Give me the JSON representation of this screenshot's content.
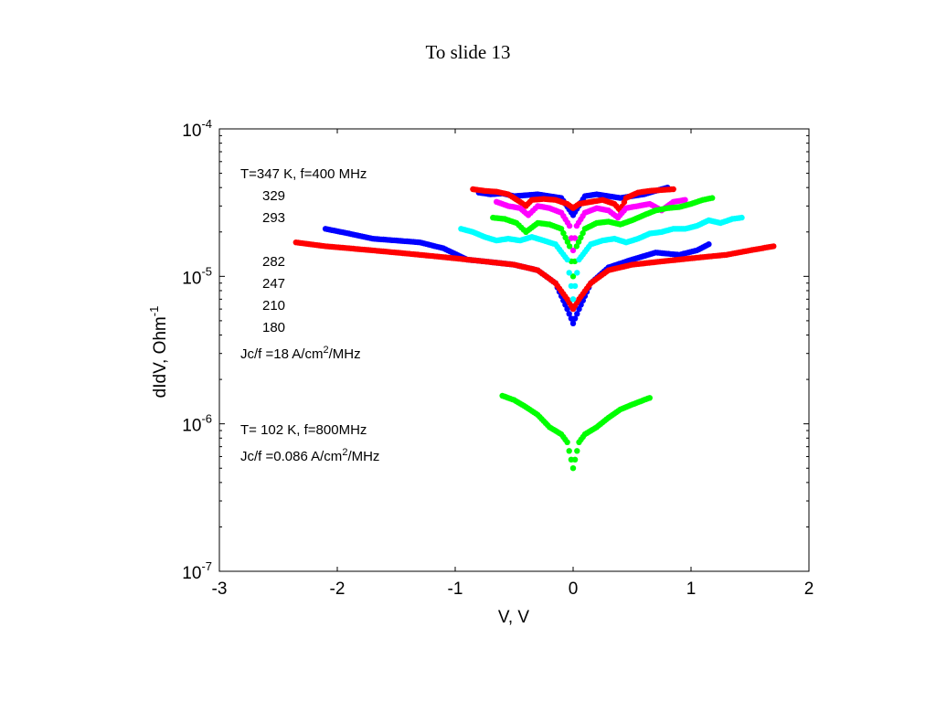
{
  "slide_title": "To slide 13",
  "chart_data": {
    "type": "scatter",
    "title": "",
    "xlabel": "V, V",
    "ylabel": "dIdV, Ohm",
    "ylabel_superscript": "-1",
    "xlim": [
      -3,
      2
    ],
    "ylim": [
      1e-07,
      0.0001
    ],
    "yscale": "log",
    "grid": false,
    "x_ticks": [
      -3,
      -2,
      -1,
      0,
      1,
      2
    ],
    "x_tick_labels": [
      "-3",
      "-2",
      "-1",
      "0",
      "1",
      "2"
    ],
    "y_ticks": [
      1e-07,
      1e-06,
      1e-05,
      0.0001
    ],
    "y_tick_labels": [
      {
        "base": "10",
        "exp": "-7"
      },
      {
        "base": "10",
        "exp": "-6"
      },
      {
        "base": "10",
        "exp": "-5"
      },
      {
        "base": "10",
        "exp": "-4"
      }
    ],
    "annotations": {
      "group1_header": "T=347 K, f=400 MHz",
      "temperatures": [
        "329",
        "293",
        "282",
        "247",
        "210",
        "180"
      ],
      "group1_jc": {
        "text": "Jc/f =18 A/cm",
        "sup": "2",
        "tail": "/MHz"
      },
      "group2_header": "T= 102 K, f=800MHz",
      "group2_jc": {
        "text": "Jc/f =0.086 A/cm",
        "sup": "2",
        "tail": "/MHz"
      }
    },
    "series": [
      {
        "color": "#0000ff",
        "shape": "w",
        "points": [
          [
            -0.8,
            3.7e-05
          ],
          [
            -0.7,
            3.6e-05
          ],
          [
            -0.6,
            3.65e-05
          ],
          [
            -0.5,
            3.5e-05
          ],
          [
            -0.4,
            3.55e-05
          ],
          [
            -0.3,
            3.6e-05
          ],
          [
            -0.2,
            3.5e-05
          ],
          [
            -0.1,
            3.4e-05
          ],
          [
            0.0,
            2.6e-05
          ],
          [
            0.1,
            3.5e-05
          ],
          [
            0.2,
            3.6e-05
          ],
          [
            0.3,
            3.5e-05
          ],
          [
            0.4,
            3.4e-05
          ],
          [
            0.5,
            3.5e-05
          ],
          [
            0.6,
            3.6e-05
          ],
          [
            0.7,
            3.8e-05
          ],
          [
            0.8,
            4e-05
          ]
        ],
        "points_low": [
          [
            -2.1,
            2.1e-05
          ],
          [
            -1.9,
            1.95e-05
          ],
          [
            -1.7,
            1.8e-05
          ],
          [
            -1.5,
            1.75e-05
          ],
          [
            -1.3,
            1.7e-05
          ],
          [
            -1.1,
            1.55e-05
          ],
          [
            -0.9,
            1.3e-05
          ],
          [
            -0.7,
            1.25e-05
          ],
          [
            -0.5,
            1.2e-05
          ],
          [
            -0.3,
            1.1e-05
          ],
          [
            -0.15,
            9e-06
          ],
          [
            -0.05,
            6e-06
          ],
          [
            0.0,
            4.8e-06
          ],
          [
            0.05,
            6e-06
          ],
          [
            0.15,
            9e-06
          ],
          [
            0.3,
            1.15e-05
          ],
          [
            0.5,
            1.3e-05
          ],
          [
            0.7,
            1.45e-05
          ],
          [
            0.9,
            1.4e-05
          ],
          [
            1.05,
            1.5e-05
          ],
          [
            1.15,
            1.65e-05
          ]
        ]
      },
      {
        "color": "#ff0000",
        "shape": "w",
        "points": [
          [
            -0.85,
            3.9e-05
          ],
          [
            -0.75,
            3.8e-05
          ],
          [
            -0.65,
            3.75e-05
          ],
          [
            -0.55,
            3.6e-05
          ],
          [
            -0.45,
            3.2e-05
          ],
          [
            -0.4,
            3e-05
          ],
          [
            -0.35,
            3.3e-05
          ],
          [
            -0.25,
            3.35e-05
          ],
          [
            -0.15,
            3.3e-05
          ],
          [
            -0.05,
            3.1e-05
          ],
          [
            0.0,
            2.9e-05
          ],
          [
            0.05,
            3.1e-05
          ],
          [
            0.15,
            3.2e-05
          ],
          [
            0.25,
            3.3e-05
          ],
          [
            0.35,
            3.1e-05
          ],
          [
            0.4,
            2.8e-05
          ],
          [
            0.45,
            3.4e-05
          ],
          [
            0.55,
            3.7e-05
          ],
          [
            0.65,
            3.8e-05
          ],
          [
            0.75,
            3.85e-05
          ],
          [
            0.85,
            3.9e-05
          ]
        ],
        "points_low": [
          [
            -2.35,
            1.7e-05
          ],
          [
            -2.1,
            1.6e-05
          ],
          [
            -1.9,
            1.55e-05
          ],
          [
            -1.7,
            1.5e-05
          ],
          [
            -1.5,
            1.45e-05
          ],
          [
            -1.3,
            1.4e-05
          ],
          [
            -1.1,
            1.35e-05
          ],
          [
            -0.9,
            1.3e-05
          ],
          [
            -0.7,
            1.25e-05
          ],
          [
            -0.5,
            1.2e-05
          ],
          [
            -0.3,
            1.1e-05
          ],
          [
            -0.15,
            9e-06
          ],
          [
            -0.05,
            7e-06
          ],
          [
            0.0,
            6e-06
          ],
          [
            0.05,
            7e-06
          ],
          [
            0.15,
            9e-06
          ],
          [
            0.3,
            1.1e-05
          ],
          [
            0.5,
            1.2e-05
          ],
          [
            0.7,
            1.25e-05
          ],
          [
            0.9,
            1.3e-05
          ],
          [
            1.1,
            1.35e-05
          ],
          [
            1.3,
            1.4e-05
          ],
          [
            1.5,
            1.5e-05
          ],
          [
            1.7,
            1.6e-05
          ]
        ]
      },
      {
        "color": "#ff00ff",
        "shape": "w",
        "points": [
          [
            -0.65,
            3.2e-05
          ],
          [
            -0.55,
            3e-05
          ],
          [
            -0.45,
            2.9e-05
          ],
          [
            -0.38,
            2.6e-05
          ],
          [
            -0.3,
            3e-05
          ],
          [
            -0.2,
            2.9e-05
          ],
          [
            -0.1,
            2.7e-05
          ],
          [
            -0.03,
            2.2e-05
          ],
          [
            0.0,
            1.5e-05
          ],
          [
            0.03,
            2.2e-05
          ],
          [
            0.1,
            2.7e-05
          ],
          [
            0.2,
            2.9e-05
          ],
          [
            0.3,
            2.8e-05
          ],
          [
            0.38,
            2.5e-05
          ],
          [
            0.45,
            2.9e-05
          ],
          [
            0.55,
            3e-05
          ],
          [
            0.65,
            3.1e-05
          ],
          [
            0.75,
            2.8e-05
          ],
          [
            0.85,
            3.2e-05
          ],
          [
            0.95,
            3.3e-05
          ]
        ]
      },
      {
        "color": "#00ff00",
        "shape": "w",
        "points": [
          [
            -0.68,
            2.5e-05
          ],
          [
            -0.58,
            2.45e-05
          ],
          [
            -0.48,
            2.3e-05
          ],
          [
            -0.4,
            2e-05
          ],
          [
            -0.3,
            2.3e-05
          ],
          [
            -0.2,
            2.25e-05
          ],
          [
            -0.1,
            2.1e-05
          ],
          [
            -0.03,
            1.6e-05
          ],
          [
            0.0,
            1e-05
          ],
          [
            0.03,
            1.6e-05
          ],
          [
            0.1,
            2.1e-05
          ],
          [
            0.2,
            2.3e-05
          ],
          [
            0.3,
            2.35e-05
          ],
          [
            0.4,
            2.25e-05
          ],
          [
            0.5,
            2.4e-05
          ],
          [
            0.6,
            2.6e-05
          ],
          [
            0.7,
            2.8e-05
          ],
          [
            0.8,
            2.9e-05
          ],
          [
            0.9,
            2.95e-05
          ],
          [
            1.0,
            3.1e-05
          ],
          [
            1.1,
            3.3e-05
          ],
          [
            1.18,
            3.4e-05
          ]
        ],
        "points_low": [
          [
            -0.6,
            1.55e-06
          ],
          [
            -0.5,
            1.45e-06
          ],
          [
            -0.4,
            1.3e-06
          ],
          [
            -0.3,
            1.15e-06
          ],
          [
            -0.2,
            9.5e-07
          ],
          [
            -0.1,
            8.5e-07
          ],
          [
            -0.05,
            7.5e-07
          ],
          [
            0.0,
            5e-07
          ],
          [
            0.05,
            7.5e-07
          ],
          [
            0.1,
            8.5e-07
          ],
          [
            0.2,
            9.5e-07
          ],
          [
            0.3,
            1.1e-06
          ],
          [
            0.4,
            1.25e-06
          ],
          [
            0.5,
            1.35e-06
          ],
          [
            0.6,
            1.45e-06
          ],
          [
            0.65,
            1.5e-06
          ]
        ]
      },
      {
        "color": "#00ffff",
        "shape": "w",
        "points": [
          [
            -0.95,
            2.1e-05
          ],
          [
            -0.85,
            2e-05
          ],
          [
            -0.75,
            1.85e-05
          ],
          [
            -0.65,
            1.75e-05
          ],
          [
            -0.55,
            1.8e-05
          ],
          [
            -0.45,
            1.75e-05
          ],
          [
            -0.35,
            1.85e-05
          ],
          [
            -0.25,
            1.75e-05
          ],
          [
            -0.15,
            1.65e-05
          ],
          [
            -0.05,
            1.3e-05
          ],
          [
            0.0,
            7e-06
          ],
          [
            0.05,
            1.3e-05
          ],
          [
            0.15,
            1.65e-05
          ],
          [
            0.25,
            1.75e-05
          ],
          [
            0.35,
            1.8e-05
          ],
          [
            0.45,
            1.7e-05
          ],
          [
            0.55,
            1.8e-05
          ],
          [
            0.65,
            1.95e-05
          ],
          [
            0.75,
            2e-05
          ],
          [
            0.85,
            2.1e-05
          ],
          [
            0.95,
            2.1e-05
          ],
          [
            1.05,
            2.2e-05
          ],
          [
            1.15,
            2.4e-05
          ],
          [
            1.25,
            2.3e-05
          ],
          [
            1.35,
            2.45e-05
          ],
          [
            1.43,
            2.5e-05
          ]
        ]
      }
    ]
  }
}
